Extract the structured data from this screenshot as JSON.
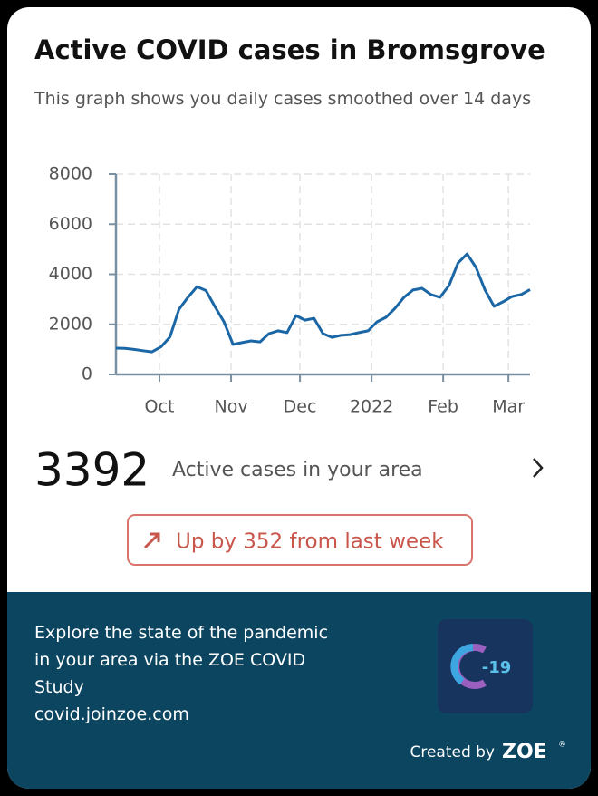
{
  "chart_data": {
    "type": "line",
    "title": "Active COVID cases in Bromsgrove",
    "subtitle": "This graph shows you daily cases smoothed over 14 days",
    "color": "#1b67a6",
    "values": [
      1050,
      1040,
      1000,
      950,
      900,
      1100,
      1500,
      2600,
      3080,
      3500,
      3350,
      2700,
      2100,
      1200,
      1270,
      1340,
      1300,
      1630,
      1740,
      1670,
      2350,
      2170,
      2240,
      1630,
      1480,
      1560,
      1590,
      1670,
      1740,
      2100,
      2280,
      2640,
      3080,
      3370,
      3440,
      3190,
      3080,
      3550,
      4450,
      4810,
      4270,
      3370,
      2720,
      2900,
      3110,
      3190,
      3390
    ],
    "xlim": [
      0,
      46
    ],
    "xticks": [
      {
        "value": 4.83,
        "label": "Oct"
      },
      {
        "value": 12.79,
        "label": "Nov"
      },
      {
        "value": 20.44,
        "label": "Dec"
      },
      {
        "value": 28.4,
        "label": "2022"
      },
      {
        "value": 36.35,
        "label": "Feb"
      },
      {
        "value": 43.6,
        "label": "Mar"
      }
    ],
    "ylim": [
      0,
      8000
    ],
    "yticks": [
      0,
      2000,
      4000,
      6000,
      8000
    ],
    "grid": true
  },
  "summary": {
    "count": 3392,
    "count_label": "Active cases in your area",
    "change": "Up by 352 from last week"
  },
  "footer": {
    "lines": [
      "Explore the state of the pandemic",
      "in your area via the ZOE COVID",
      "Study"
    ],
    "url": "covid.joinzoe.com",
    "logo_text": "-19",
    "created_by": "Created by",
    "brand": "ZOE",
    "brand_mark": "®"
  }
}
